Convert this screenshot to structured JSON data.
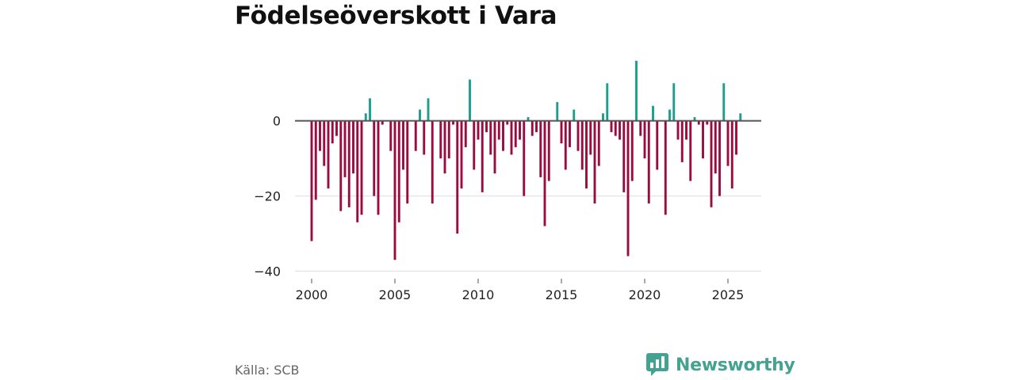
{
  "title": "Födelseöverskott i Vara",
  "source": "Källa: SCB",
  "brand": {
    "name": "Newsworthy",
    "icon": "newsworthy-logo-icon"
  },
  "colors": {
    "positive": "#1b9e8f",
    "negative": "#9b0b3e",
    "zero_line": "#555555",
    "grid": "#dddddd",
    "brand": "#43a291"
  },
  "chart_data": {
    "type": "bar",
    "title": "Födelseöverskott i Vara",
    "xlabel": "",
    "ylabel": "",
    "frequency": "monthly",
    "x_start": 2000.0,
    "x_step": 0.25,
    "xlim": [
      1999.0,
      2027.0
    ],
    "ylim": [
      -42,
      17
    ],
    "x_ticks": [
      2000,
      2005,
      2010,
      2015,
      2020,
      2025
    ],
    "y_ticks": [
      0,
      -20,
      -40
    ],
    "y_tick_labels": [
      "0",
      "−20",
      "−40"
    ],
    "grid": true,
    "values": [
      -32,
      -21,
      -8,
      -12,
      -18,
      -6,
      -4,
      -24,
      -15,
      -23,
      -14,
      -27,
      -25,
      2,
      6,
      -20,
      -25,
      -1,
      0,
      -8,
      -37,
      -27,
      -13,
      -22,
      0,
      -8,
      3,
      -9,
      6,
      -22,
      0,
      -10,
      -14,
      -10,
      -1,
      -30,
      -18,
      -7,
      11,
      -13,
      -5,
      -19,
      -3,
      -9,
      -14,
      -5,
      -8,
      -1,
      -9,
      -7,
      -5,
      -20,
      1,
      -4,
      -3,
      -15,
      -28,
      -16,
      0,
      5,
      -6,
      -13,
      -7,
      3,
      -8,
      -13,
      -18,
      -9,
      -22,
      -12,
      2,
      10,
      -3,
      -4,
      -5,
      -19,
      -36,
      -16,
      16,
      -4,
      -10,
      -22,
      4,
      -13,
      0,
      -25,
      3,
      10,
      -5,
      -11,
      -5,
      -16,
      1,
      -1,
      -10,
      -1,
      -23,
      -14,
      -20,
      10,
      -12,
      -18,
      -9,
      2
    ]
  }
}
